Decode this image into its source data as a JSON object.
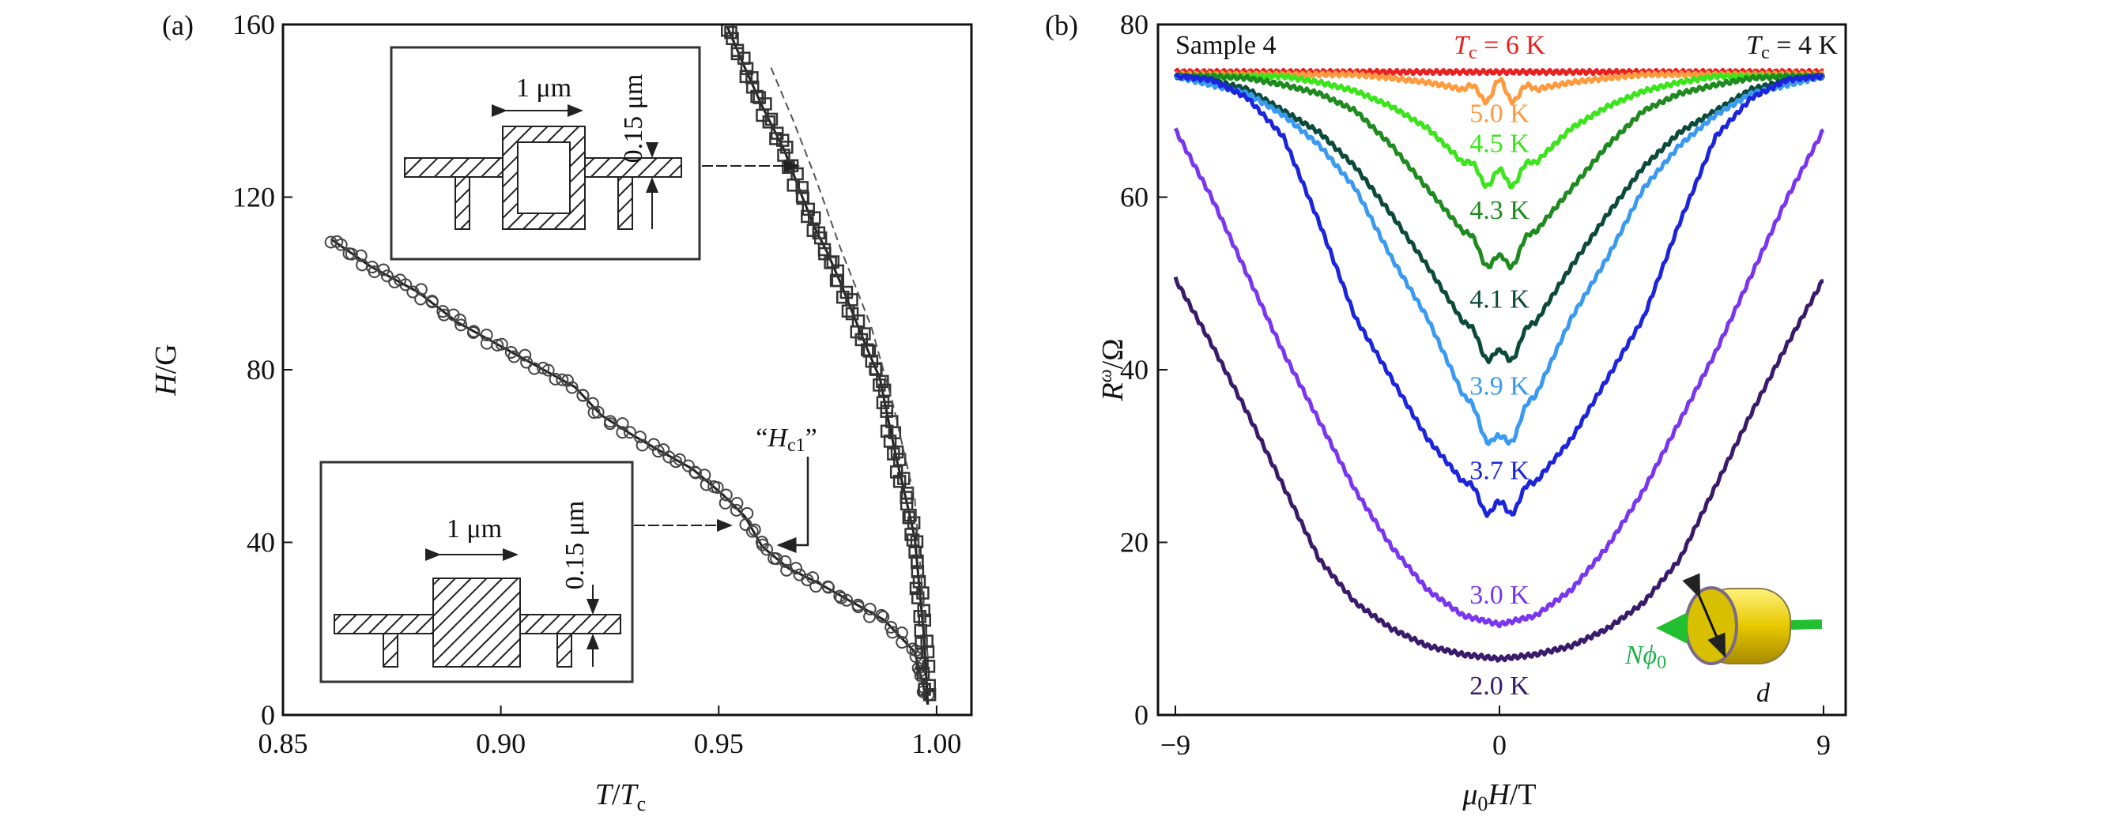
{
  "chart_data": [
    {
      "type": "scatter",
      "panel_label": "(a)",
      "xlabel": {
        "var": "T",
        "sep": "/",
        "var2": "T",
        "sub": "c"
      },
      "ylabel": {
        "var": "H",
        "unit": "/G"
      },
      "xlim": [
        0.85,
        1.008
      ],
      "ylim": [
        0,
        160
      ],
      "xticks": [
        "0.85",
        "0.90",
        "0.95",
        "1.00"
      ],
      "yticks": [
        "0",
        "40",
        "80",
        "120",
        "160"
      ],
      "grid": false,
      "series": [
        {
          "marker": "circle",
          "x": [
            0.861,
            0.87,
            0.881,
            0.89,
            0.899,
            0.908,
            0.917,
            0.923,
            0.93,
            0.936,
            0.944,
            0.951,
            0.956,
            0.96,
            0.966,
            0.973,
            0.98,
            0.988,
            0.995,
            0.998
          ],
          "y": [
            110.3,
            104,
            98,
            91,
            86,
            81,
            76,
            69.5,
            65,
            61.5,
            57,
            51,
            46,
            39,
            34,
            30.5,
            26.5,
            22,
            14.6,
            2.4
          ]
        },
        {
          "marker": "square",
          "x": [
            0.952,
            0.956,
            0.96,
            0.965,
            0.969,
            0.972,
            0.975,
            0.978,
            0.981,
            0.984,
            0.987,
            0.989,
            0.991,
            0.993,
            0.995,
            0.996,
            0.997,
            0.998
          ],
          "y": [
            159.4,
            150,
            141,
            131,
            120.5,
            113,
            107,
            100,
            92.5,
            85,
            78,
            68,
            58.5,
            50,
            41,
            30,
            19.5,
            2.4
          ]
        },
        {
          "style": "dashed",
          "x": [
            0.962,
            0.967,
            0.972,
            0.978,
            0.985,
            0.99,
            0.995,
            0.998
          ],
          "y": [
            150,
            138,
            125,
            108,
            90,
            72,
            50,
            13
          ]
        }
      ],
      "annotations": {
        "hc1": {
          "var": "H",
          "sub": "c1",
          "open_quote": "“",
          "close_quote": "”"
        },
        "inset_top": {
          "width_label": "1 μm",
          "thickness_label": "0.15 μm"
        },
        "inset_bottom": {
          "width_label": "1 μm",
          "thickness_label": "0.15 μm"
        }
      }
    },
    {
      "type": "line",
      "panel_label": "(b)",
      "xlabel": {
        "var": "μ",
        "sub": "0",
        "var2": "H",
        "unit": "/T"
      },
      "ylabel": {
        "var": "R",
        "sup": "ω",
        "unit": "/Ω"
      },
      "xlim": [
        -9.6,
        11.3
      ],
      "ylim": [
        0,
        80
      ],
      "xticks": [
        "−9",
        "0",
        "9"
      ],
      "xtick_values": [
        -9,
        0,
        9
      ],
      "yticks": [
        "0",
        "20",
        "40",
        "60",
        "80"
      ],
      "grid": false,
      "sample_label": "Sample 4",
      "tc_left": {
        "var": "T",
        "sub": "c",
        "rest": " = 6 K",
        "color": "#e82020"
      },
      "tc_right": {
        "var": "T",
        "sub": "c",
        "rest": " = 4 K"
      },
      "x_abs": [
        0,
        1,
        2,
        3,
        4,
        5,
        6,
        7,
        8,
        9
      ],
      "series": [
        {
          "name": "6 K",
          "label": "",
          "color": "#e82020",
          "y": [
            74.5,
            74.5,
            74.5,
            74.5,
            74.5,
            74.5,
            74.5,
            74.5,
            74.5,
            74.5
          ]
        },
        {
          "name": "5.0 K",
          "label": "5.0 K",
          "color": "#ff9a40",
          "y": [
            72,
            72.5,
            73.3,
            73.8,
            74.2,
            74.2,
            74.2,
            74.2,
            74.2,
            74.2
          ]
        },
        {
          "name": "4.5 K",
          "label": "4.5 K",
          "color": "#3ce41c",
          "y": [
            61.5,
            64,
            68,
            70.5,
            72.3,
            73.3,
            74,
            74,
            74,
            74
          ]
        },
        {
          "name": "4.3 K",
          "label": "4.3 K",
          "color": "#1f8a1f",
          "y": [
            51.5,
            56,
            61,
            66,
            70,
            72,
            73,
            73.8,
            74,
            74
          ]
        },
        {
          "name": "4.1 K",
          "label": "4.1 K",
          "color": "#0c4a3a",
          "y": [
            40.5,
            45.5,
            52,
            58,
            63.5,
            67.5,
            70,
            72.5,
            73.5,
            74
          ]
        },
        {
          "name": "3.9 K",
          "label": "3.9 K",
          "color": "#3a9af0",
          "y": [
            30.5,
            37,
            46,
            53,
            61,
            66,
            69.5,
            72,
            73,
            74
          ]
        },
        {
          "name": "3.7 K",
          "label": "3.7 K",
          "color": "#1c24dc",
          "y": [
            23,
            27,
            32,
            39,
            46,
            57,
            67,
            71.5,
            73.6,
            74
          ]
        },
        {
          "name": "3.0 K",
          "label": "3.0 K",
          "color": "#7a36ee",
          "y": [
            10.5,
            11.5,
            14.5,
            19.5,
            26,
            34,
            42,
            51,
            60,
            67.8
          ]
        },
        {
          "name": "2.0 K",
          "label": "2.0 K",
          "color": "#3a1a6a",
          "y": [
            6.5,
            7,
            8,
            10,
            13,
            18,
            26.5,
            35,
            43,
            50.5
          ]
        }
      ],
      "inset": {
        "flux_label": {
          "var": "N",
          "phi": "ϕ",
          "sub": "0",
          "color": "#22b04a"
        },
        "diameter_label": "d"
      }
    }
  ]
}
